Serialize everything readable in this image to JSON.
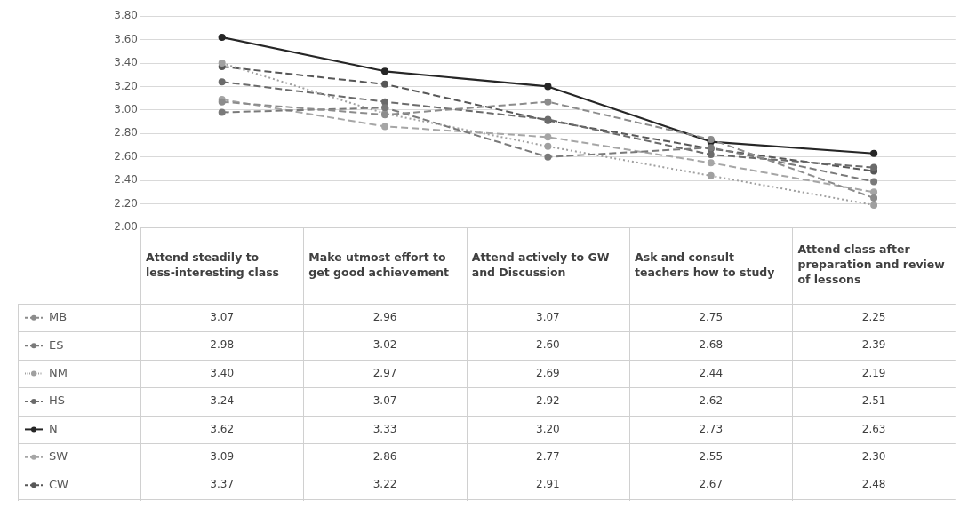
{
  "chart_data": {
    "type": "line",
    "categories": [
      "Attend steadily to less-interesting class",
      "Make utmost effort to get good achievement",
      "Attend actively to GW and Discussion",
      "Ask and consult teachers how to study",
      "Attend class after preparation and review of lessons"
    ],
    "series": [
      {
        "name": "MB",
        "color": "#8c8c8c",
        "line_style": "dashed",
        "values": [
          3.07,
          2.96,
          3.07,
          2.75,
          2.25
        ],
        "value_labels": [
          "3.07",
          "2.96",
          "3.07",
          "2.75",
          "2.25"
        ]
      },
      {
        "name": "ES",
        "color": "#7a7a7a",
        "line_style": "dashed",
        "values": [
          2.98,
          3.02,
          2.6,
          2.68,
          2.39
        ],
        "value_labels": [
          "2.98",
          "3.02",
          "2.60",
          "2.68",
          "2.39"
        ]
      },
      {
        "name": "NM",
        "color": "#a0a0a0",
        "line_style": "dotted",
        "values": [
          3.4,
          2.97,
          2.69,
          2.44,
          2.19
        ],
        "value_labels": [
          "3.40",
          "2.97",
          "2.69",
          "2.44",
          "2.19"
        ]
      },
      {
        "name": "HS",
        "color": "#6b6b6b",
        "line_style": "dashed",
        "values": [
          3.24,
          3.07,
          2.92,
          2.62,
          2.51
        ],
        "value_labels": [
          "3.24",
          "3.07",
          "2.92",
          "2.62",
          "2.51"
        ]
      },
      {
        "name": "N",
        "color": "#262626",
        "line_style": "solid",
        "values": [
          3.62,
          3.33,
          3.2,
          2.73,
          2.63
        ],
        "value_labels": [
          "3.62",
          "3.33",
          "3.20",
          "2.73",
          "2.63"
        ]
      },
      {
        "name": "SW",
        "color": "#a6a6a6",
        "line_style": "dashed",
        "values": [
          3.09,
          2.86,
          2.77,
          2.55,
          2.3
        ],
        "value_labels": [
          "3.09",
          "2.86",
          "2.77",
          "2.55",
          "2.30"
        ]
      },
      {
        "name": "CW",
        "color": "#575757",
        "line_style": "dashed",
        "values": [
          3.37,
          3.22,
          2.91,
          2.67,
          2.48
        ],
        "value_labels": [
          "3.37",
          "3.22",
          "2.91",
          "2.67",
          "2.48"
        ]
      }
    ],
    "ylim": [
      2.0,
      3.8
    ],
    "yticks": [
      {
        "value": 2.0,
        "label": "2.00"
      },
      {
        "value": 2.2,
        "label": "2.20"
      },
      {
        "value": 2.4,
        "label": "2.40"
      },
      {
        "value": 2.6,
        "label": "2.60"
      },
      {
        "value": 2.8,
        "label": "2.80"
      },
      {
        "value": 3.0,
        "label": "3.00"
      },
      {
        "value": 3.2,
        "label": "3.20"
      },
      {
        "value": 3.4,
        "label": "3.40"
      },
      {
        "value": 3.6,
        "label": "3.60"
      },
      {
        "value": 3.8,
        "label": "3.80"
      }
    ],
    "grid": "y",
    "legend": "bottom",
    "marker": "circle"
  }
}
